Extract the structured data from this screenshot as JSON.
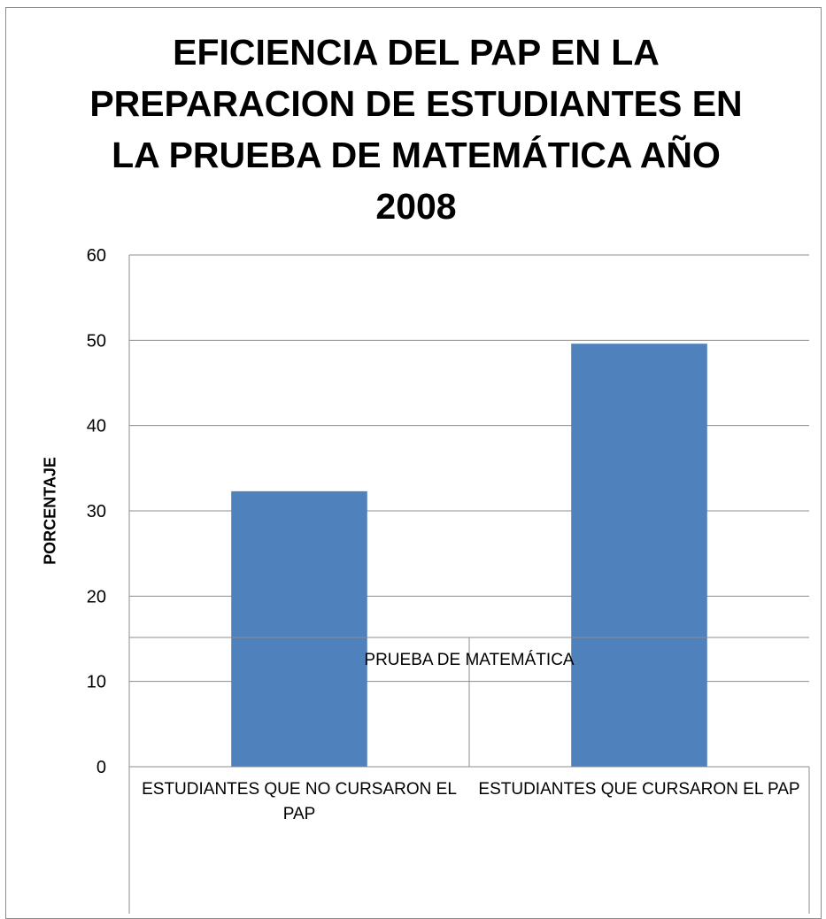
{
  "chart_data": {
    "type": "bar",
    "title": "EFICIENCIA DEL PAP EN LA PREPARACION DE ESTUDIANTES EN LA PRUEBA DE MATEMÁTICA AÑO 2008",
    "xlabel": "PRUEBA DE MATEMÁTICA",
    "ylabel": "PORCENTAJE",
    "categories": [
      "ESTUDIANTES QUE NO CURSARON EL PAP",
      "ESTUDIANTES QUE CURSARON EL PAP"
    ],
    "values": [
      32.3,
      49.6
    ],
    "ylim": [
      0,
      60
    ],
    "yticks": [
      0,
      10,
      20,
      30,
      40,
      50,
      60
    ],
    "grid": true,
    "legend": "none",
    "bar_color": "#4F81BD"
  }
}
